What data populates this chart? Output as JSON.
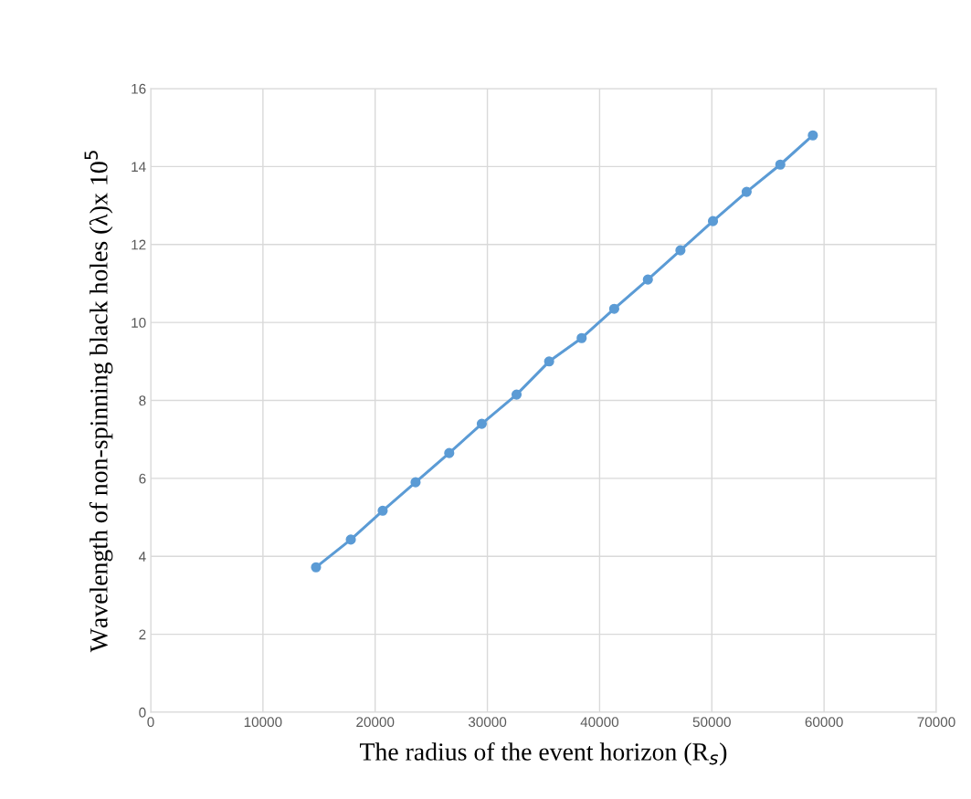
{
  "chart_data": {
    "type": "line",
    "xlabel": "The radius of the event horizon (R$_{s}$)",
    "ylabel": "Wavelength of non-spinning black holes (λ)x 10$^{5}$",
    "x": [
      14730,
      17830,
      20670,
      23600,
      26600,
      29500,
      32600,
      35500,
      38400,
      41300,
      44300,
      47200,
      50100,
      53100,
      56100,
      59000
    ],
    "series": [
      {
        "color": "#5b9bd5",
        "values": [
          3.72,
          4.43,
          5.17,
          5.9,
          6.65,
          7.4,
          8.15,
          9.0,
          9.6,
          10.35,
          11.1,
          11.85,
          12.6,
          13.35,
          14.05,
          14.8
        ]
      }
    ],
    "xlim": [
      0,
      70000
    ],
    "xticks": [
      0,
      10000,
      20000,
      30000,
      40000,
      50000,
      60000,
      70000
    ],
    "ylim": [
      0,
      16
    ],
    "yticks": [
      0,
      2,
      4,
      6,
      8,
      10,
      12,
      14,
      16
    ],
    "grid": true,
    "marker": "circle",
    "line_style": "solid"
  }
}
